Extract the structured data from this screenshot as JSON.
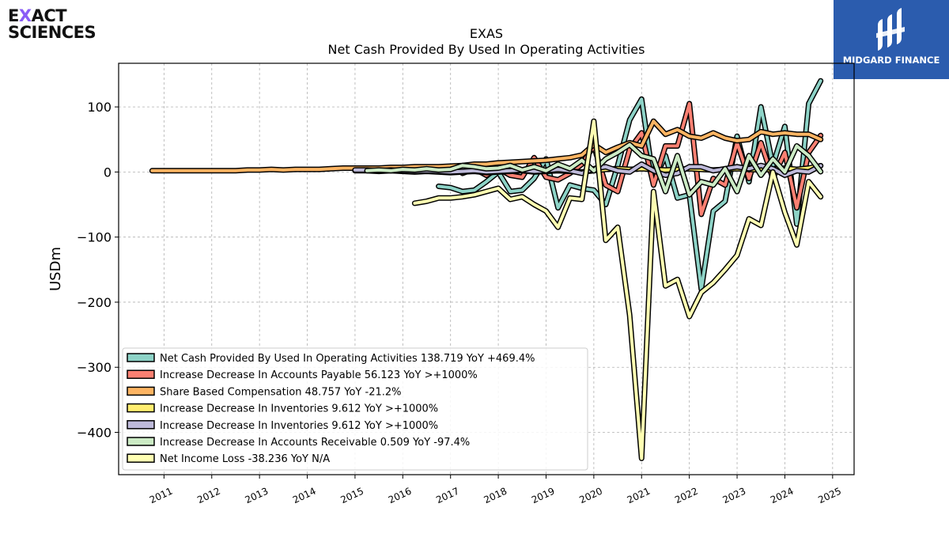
{
  "brand": {
    "logo_line1_a": "E",
    "logo_line1_b": "X",
    "logo_line1_c": "ACT",
    "logo_line2": "SCIENCES",
    "accent_color": "#8a5cf6"
  },
  "partner": {
    "name": "MIDGARD FINANCE",
    "background_color": "#2b5cae"
  },
  "chart_data": {
    "type": "line",
    "title": "EXAS",
    "subtitle": "Net Cash Provided By Used In Operating Activities",
    "xlabel": "",
    "ylabel": "USDm",
    "xlim": [
      2010.05,
      2025.45
    ],
    "ylim": [
      -465,
      167
    ],
    "x_ticks": [
      2011,
      2012,
      2013,
      2014,
      2015,
      2016,
      2017,
      2018,
      2019,
      2020,
      2021,
      2022,
      2023,
      2024,
      2025
    ],
    "x_tick_labels": [
      "2011",
      "2012",
      "2013",
      "2014",
      "2015",
      "2016",
      "2017",
      "2018",
      "2019",
      "2020",
      "2021",
      "2022",
      "2023",
      "2024",
      "2025"
    ],
    "y_ticks": [
      100,
      0,
      -100,
      -200,
      -300,
      -400
    ],
    "y_tick_labels": [
      "100",
      "0",
      "−100",
      "−200",
      "−300",
      "−400"
    ],
    "grid": true,
    "legend_position": "lower-left",
    "series": [
      {
        "name": "Net Cash Provided By Used In Operating Activities",
        "legend_label": "Net Cash Provided By Used In Operating Activities  138.719 YoY +469.4%",
        "color": "#8dd3c7",
        "x": [
          2016.75,
          2017.0,
          2017.25,
          2017.5,
          2017.75,
          2018.0,
          2018.25,
          2018.5,
          2018.75,
          2019.0,
          2019.25,
          2019.5,
          2019.75,
          2020.0,
          2020.25,
          2020.5,
          2020.75,
          2021.0,
          2021.25,
          2021.5,
          2021.75,
          2022.0,
          2022.25,
          2022.5,
          2022.75,
          2023.0,
          2023.25,
          2023.5,
          2023.75,
          2024.0,
          2024.25,
          2024.5,
          2024.75
        ],
        "y": [
          -22,
          -24,
          -30,
          -28,
          -15,
          0,
          -30,
          -28,
          -10,
          20,
          -55,
          -20,
          -25,
          -28,
          -50,
          10,
          80,
          112,
          -15,
          25,
          -40,
          -35,
          -180,
          -60,
          -45,
          55,
          -15,
          100,
          10,
          70,
          -80,
          105,
          140
        ]
      },
      {
        "name": "Increase Decrease In Accounts Payable",
        "legend_label": "Increase Decrease In Accounts Payable  56.123 YoY >+1000%",
        "color": "#fb8072",
        "x": [
          2017.25,
          2017.5,
          2017.75,
          2018.0,
          2018.25,
          2018.5,
          2018.75,
          2019.0,
          2019.25,
          2019.5,
          2019.75,
          2020.0,
          2020.25,
          2020.5,
          2020.75,
          2021.0,
          2021.25,
          2021.5,
          2021.75,
          2022.0,
          2022.25,
          2022.5,
          2022.75,
          2023.0,
          2023.25,
          2023.5,
          2023.75,
          2024.0,
          2024.25,
          2024.5,
          2024.75
        ],
        "y": [
          -2,
          5,
          -5,
          5,
          -5,
          -8,
          22,
          -8,
          -12,
          -2,
          12,
          40,
          -20,
          -30,
          35,
          60,
          -20,
          40,
          40,
          105,
          -65,
          -10,
          -20,
          45,
          -10,
          45,
          -10,
          30,
          -55,
          30,
          56
        ]
      },
      {
        "name": "Share Based Compensation",
        "legend_label": "Share Based Compensation  48.757 YoY -21.2%",
        "color": "#fdb462",
        "x": [
          2010.75,
          2011.0,
          2011.25,
          2011.5,
          2011.75,
          2012.0,
          2012.25,
          2012.5,
          2012.75,
          2013.0,
          2013.25,
          2013.5,
          2013.75,
          2014.0,
          2014.25,
          2014.5,
          2014.75,
          2015.0,
          2015.25,
          2015.5,
          2015.75,
          2016.0,
          2016.25,
          2016.5,
          2016.75,
          2017.0,
          2017.25,
          2017.5,
          2017.75,
          2018.0,
          2018.25,
          2018.5,
          2018.75,
          2019.0,
          2019.25,
          2019.5,
          2019.75,
          2020.0,
          2020.25,
          2020.5,
          2020.75,
          2021.0,
          2021.25,
          2021.5,
          2021.75,
          2022.0,
          2022.25,
          2022.5,
          2022.75,
          2023.0,
          2023.25,
          2023.5,
          2023.75,
          2024.0,
          2024.25,
          2024.5,
          2024.75
        ],
        "y": [
          2,
          2,
          2,
          2,
          2,
          2,
          2,
          2,
          3,
          3,
          4,
          3,
          4,
          4,
          4,
          5,
          6,
          6,
          6,
          6,
          7,
          7,
          8,
          8,
          8,
          9,
          10,
          12,
          12,
          14,
          15,
          16,
          17,
          18,
          20,
          22,
          26,
          42,
          30,
          38,
          45,
          40,
          78,
          58,
          65,
          55,
          52,
          60,
          52,
          48,
          50,
          62,
          58,
          60,
          58,
          58,
          50
        ]
      },
      {
        "name": "Increase Decrease In Inventories",
        "legend_label": "Increase Decrease In Inventories  9.612 YoY >+1000%",
        "color": "#ffed6f",
        "x": [
          2015.0,
          2015.25,
          2015.5,
          2015.75,
          2016.0,
          2016.25,
          2016.5,
          2016.75,
          2017.0,
          2017.25,
          2017.5,
          2017.75,
          2018.0,
          2018.25,
          2018.5,
          2018.75,
          2019.0,
          2019.25,
          2019.5,
          2019.75,
          2020.0,
          2020.25,
          2020.5,
          2020.75,
          2021.0,
          2021.25,
          2021.5,
          2021.75,
          2022.0,
          2022.25,
          2022.5,
          2022.75,
          2023.0,
          2023.25,
          2023.5,
          2023.75,
          2024.0,
          2024.25,
          2024.5,
          2024.75
        ],
        "y": [
          2,
          2,
          1,
          2,
          1,
          0,
          1,
          0,
          -1,
          0,
          1,
          -1,
          0,
          1,
          2,
          0,
          1,
          2,
          1,
          0,
          2,
          4,
          5,
          4,
          5,
          4,
          3,
          4,
          5,
          4,
          3,
          4,
          5,
          4,
          3,
          4,
          6,
          4,
          6,
          9.6
        ]
      },
      {
        "name": "Increase Decrease In Inventories",
        "legend_label": "Increase Decrease In Inventories  9.612 YoY >+1000%",
        "color": "#bebada",
        "x": [
          2015.0,
          2015.25,
          2015.5,
          2015.75,
          2016.0,
          2016.25,
          2016.5,
          2016.75,
          2017.0,
          2017.25,
          2017.5,
          2017.75,
          2018.0,
          2018.25,
          2018.5,
          2018.75,
          2019.0,
          2019.25,
          2019.5,
          2019.75,
          2020.0,
          2020.25,
          2020.5,
          2020.75,
          2021.0,
          2021.25,
          2021.5,
          2021.75,
          2022.0,
          2022.25,
          2022.5,
          2022.75,
          2023.0,
          2023.25,
          2023.5,
          2023.75,
          2024.0,
          2024.25,
          2024.5,
          2024.75
        ],
        "y": [
          3,
          3,
          2,
          3,
          2,
          1,
          2,
          1,
          0,
          1,
          2,
          0,
          1,
          2,
          3,
          1,
          2,
          4,
          2,
          -2,
          5,
          8,
          2,
          0,
          12,
          2,
          -5,
          -2,
          8,
          8,
          2,
          5,
          8,
          5,
          10,
          5,
          -5,
          2,
          0,
          9.6
        ]
      },
      {
        "name": "Increase Decrease In Accounts Receivable",
        "legend_label": "Increase Decrease In Accounts Receivable  0.509 YoY -97.4%",
        "color": "#ccebc5",
        "x": [
          2015.25,
          2015.5,
          2015.75,
          2016.0,
          2016.25,
          2016.5,
          2016.75,
          2017.0,
          2017.25,
          2017.5,
          2017.75,
          2018.0,
          2018.25,
          2018.5,
          2018.75,
          2019.0,
          2019.25,
          2019.5,
          2019.75,
          2020.0,
          2020.25,
          2020.5,
          2020.75,
          2021.0,
          2021.25,
          2021.5,
          2021.75,
          2022.0,
          2022.25,
          2022.5,
          2022.75,
          2023.0,
          2023.25,
          2023.5,
          2023.75,
          2024.0,
          2024.25,
          2024.5,
          2024.75
        ],
        "y": [
          2,
          3,
          2,
          4,
          3,
          5,
          3,
          4,
          10,
          8,
          5,
          6,
          10,
          3,
          8,
          2,
          12,
          5,
          18,
          2,
          20,
          30,
          42,
          25,
          20,
          -30,
          25,
          -35,
          -15,
          -20,
          5,
          -30,
          25,
          -5,
          20,
          0,
          40,
          25,
          0.5
        ]
      },
      {
        "name": "Net Income Loss",
        "legend_label": "Net Income Loss  -38.236 YoY N/A",
        "color": "#ffffb3",
        "x": [
          2016.25,
          2016.5,
          2016.75,
          2017.0,
          2017.25,
          2017.5,
          2017.75,
          2018.0,
          2018.25,
          2018.5,
          2018.75,
          2019.0,
          2019.25,
          2019.5,
          2019.75,
          2020.0,
          2020.25,
          2020.5,
          2020.75,
          2021.0,
          2021.25,
          2021.5,
          2021.75,
          2022.0,
          2022.25,
          2022.5,
          2022.75,
          2023.0,
          2023.25,
          2023.5,
          2023.75,
          2024.0,
          2024.25,
          2024.5,
          2024.75
        ],
        "y": [
          -48,
          -45,
          -40,
          -40,
          -38,
          -35,
          -30,
          -25,
          -42,
          -38,
          -50,
          -60,
          -85,
          -40,
          -42,
          78,
          -105,
          -85,
          -220,
          -440,
          -30,
          -175,
          -165,
          -222,
          -185,
          -170,
          -150,
          -128,
          -72,
          -82,
          0,
          -62,
          -112,
          -15,
          -38
        ]
      }
    ]
  }
}
